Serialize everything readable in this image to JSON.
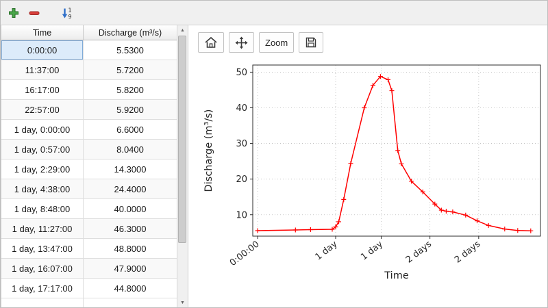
{
  "toolbar": {
    "icons": {
      "add": "+",
      "remove": "−",
      "sort_numeric": "1↓9",
      "home": "⌂",
      "pan": "✥",
      "save": "🖫",
      "scroll_up": "▲",
      "scroll_down": "▼"
    }
  },
  "table": {
    "columns": [
      "Time",
      "Discharge (m³/s)"
    ],
    "selected": {
      "row": 0,
      "column": 0
    },
    "rows": [
      [
        "0:00:00",
        "5.5300"
      ],
      [
        "11:37:00",
        "5.7200"
      ],
      [
        "16:17:00",
        "5.8200"
      ],
      [
        "22:57:00",
        "5.9200"
      ],
      [
        "1 day, 0:00:00",
        "6.6000"
      ],
      [
        "1 day, 0:57:00",
        "8.0400"
      ],
      [
        "1 day, 2:29:00",
        "14.3000"
      ],
      [
        "1 day, 4:38:00",
        "24.4000"
      ],
      [
        "1 day, 8:48:00",
        "40.0000"
      ],
      [
        "1 day, 11:27:00",
        "46.3000"
      ],
      [
        "1 day, 13:47:00",
        "48.8000"
      ],
      [
        "1 day, 16:07:00",
        "47.9000"
      ],
      [
        "1 day, 17:17:00",
        "44.8000"
      ]
    ]
  },
  "chart_toolbar": {
    "zoom_label": "Zoom"
  },
  "chart_data": {
    "type": "line",
    "title": "",
    "xlabel": "Time",
    "ylabel": "Discharge (m³/s)",
    "line_color": "#ff0000",
    "marker": "+",
    "grid": true,
    "legend": "none",
    "xlim_hours": [
      -1.5,
      87
    ],
    "ylim": [
      4,
      52
    ],
    "y_ticks": [
      10,
      20,
      30,
      40,
      50
    ],
    "x_ticks": [
      {
        "hours": 0,
        "label": "0:00:00"
      },
      {
        "hours": 24,
        "label": "1 day"
      },
      {
        "hours": 38,
        "label": "1 day"
      },
      {
        "hours": 53,
        "label": "2 days"
      },
      {
        "hours": 68,
        "label": "2 days"
      }
    ],
    "points": [
      [
        0,
        5.53
      ],
      [
        11.62,
        5.72
      ],
      [
        16.28,
        5.82
      ],
      [
        22.95,
        5.92
      ],
      [
        24.0,
        6.6
      ],
      [
        24.95,
        8.04
      ],
      [
        26.48,
        14.3
      ],
      [
        28.63,
        24.4
      ],
      [
        32.8,
        40.0
      ],
      [
        35.45,
        46.3
      ],
      [
        37.78,
        48.8
      ],
      [
        40.12,
        47.9
      ],
      [
        41.28,
        44.8
      ],
      [
        43.1,
        28.0
      ],
      [
        44.2,
        24.3
      ],
      [
        47.3,
        19.4
      ],
      [
        50.8,
        16.4
      ],
      [
        54.5,
        13.0
      ],
      [
        56.5,
        11.3
      ],
      [
        58.0,
        11.0
      ],
      [
        60.0,
        10.8
      ],
      [
        64.0,
        9.9
      ],
      [
        67.5,
        8.3
      ],
      [
        71.0,
        7.0
      ],
      [
        76.0,
        6.0
      ],
      [
        80.0,
        5.6
      ],
      [
        84.0,
        5.5
      ]
    ]
  }
}
